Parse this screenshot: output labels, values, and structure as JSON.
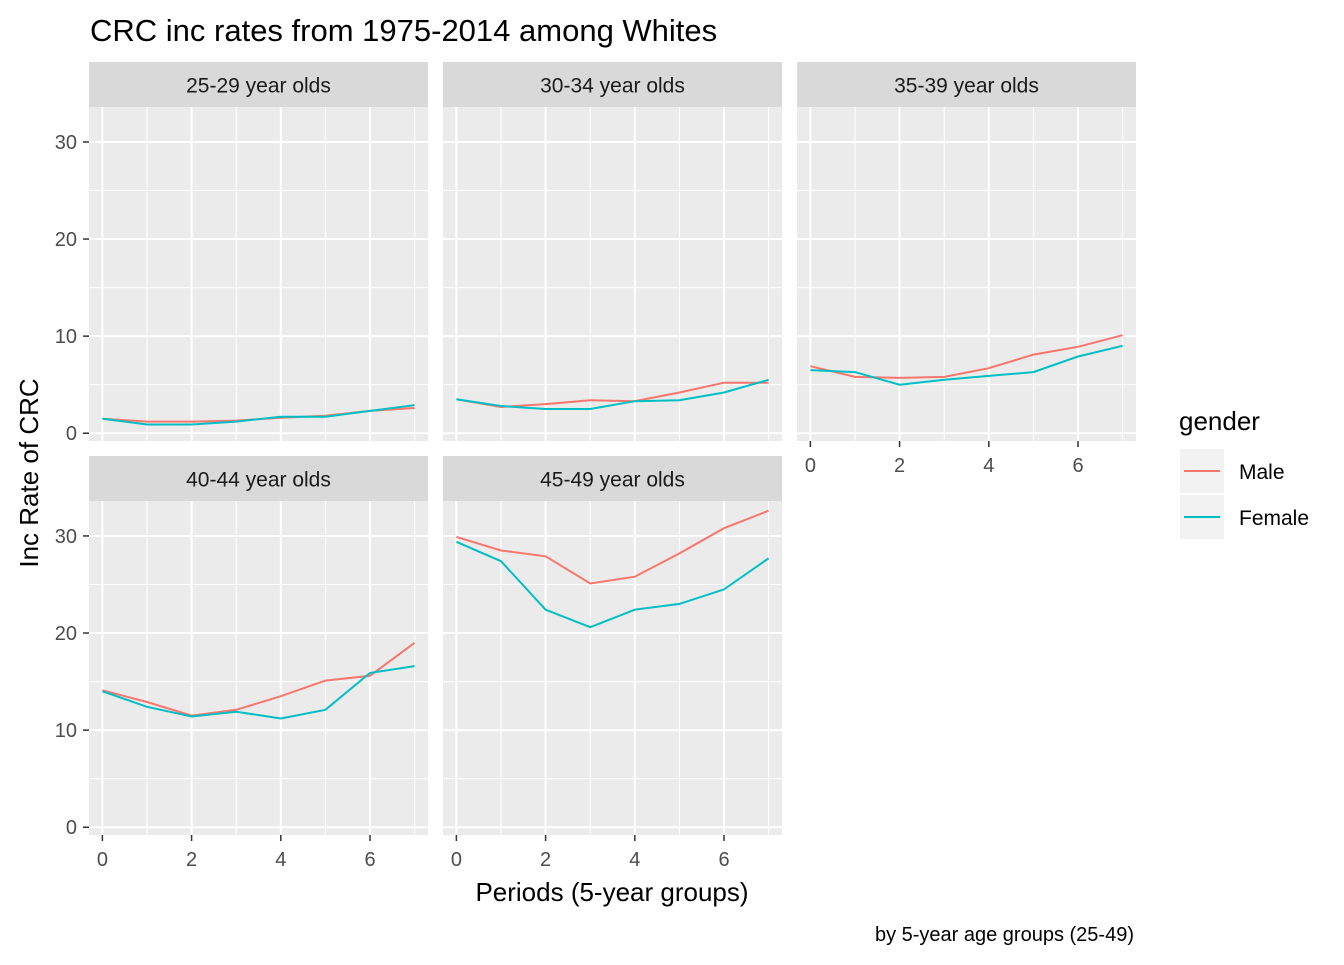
{
  "chart_data": {
    "type": "line",
    "title": "CRC inc rates from 1975-2014 among Whites",
    "caption": "by 5-year age groups (25-49)",
    "xlabel": "Periods (5-year groups)",
    "ylabel": "Inc Rate of CRC",
    "xlim": [
      -0.3,
      7.3
    ],
    "ylim": [
      -0.8,
      33.6
    ],
    "x_ticks": [
      0,
      2,
      4,
      6
    ],
    "y_ticks": [
      0,
      10,
      20,
      30
    ],
    "grid": true,
    "legend": {
      "title": "gender",
      "position": "right",
      "entries": [
        "Male",
        "Female"
      ]
    },
    "colors": {
      "Male": "#F8766D",
      "Female": "#00BFC4"
    },
    "x": [
      0,
      1,
      2,
      3,
      4,
      5,
      6,
      7
    ],
    "panels": [
      {
        "label": "25-29 year olds",
        "series": [
          {
            "name": "Male",
            "values": [
              1.5,
              1.2,
              1.2,
              1.3,
              1.6,
              1.8,
              2.3,
              2.6
            ]
          },
          {
            "name": "Female",
            "values": [
              1.5,
              0.9,
              0.9,
              1.2,
              1.7,
              1.7,
              2.3,
              2.9
            ]
          }
        ]
      },
      {
        "label": "30-34 year olds",
        "series": [
          {
            "name": "Male",
            "values": [
              3.5,
              2.7,
              3.0,
              3.4,
              3.3,
              4.2,
              5.2,
              5.2
            ]
          },
          {
            "name": "Female",
            "values": [
              3.5,
              2.8,
              2.5,
              2.5,
              3.3,
              3.4,
              4.2,
              5.5
            ]
          }
        ]
      },
      {
        "label": "35-39 year olds",
        "series": [
          {
            "name": "Male",
            "values": [
              6.9,
              5.8,
              5.7,
              5.8,
              6.7,
              8.1,
              8.9,
              10.1
            ]
          },
          {
            "name": "Female",
            "values": [
              6.5,
              6.3,
              5.0,
              5.5,
              5.9,
              6.3,
              7.9,
              9.0
            ]
          }
        ]
      },
      {
        "label": "40-44 year olds",
        "series": [
          {
            "name": "Male",
            "values": [
              14.1,
              12.9,
              11.5,
              12.1,
              13.5,
              15.1,
              15.6,
              19.0
            ]
          },
          {
            "name": "Female",
            "values": [
              14.0,
              12.4,
              11.4,
              11.9,
              11.2,
              12.1,
              15.9,
              16.6
            ]
          }
        ]
      },
      {
        "label": "45-49 year olds",
        "series": [
          {
            "name": "Male",
            "values": [
              29.9,
              28.5,
              27.9,
              25.1,
              25.8,
              28.2,
              30.8,
              32.6
            ]
          },
          {
            "name": "Female",
            "values": [
              29.4,
              27.4,
              22.4,
              20.6,
              22.4,
              23.0,
              24.5,
              27.7
            ]
          }
        ]
      }
    ]
  }
}
